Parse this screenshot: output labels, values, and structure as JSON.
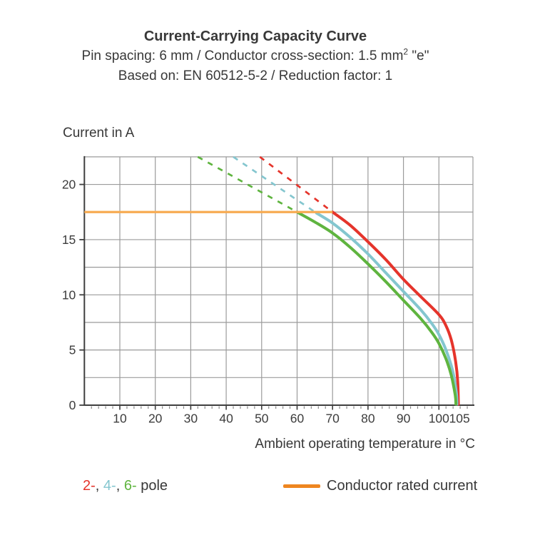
{
  "header": {
    "title": "Current-Carrying Capacity Curve",
    "subtitle_prefix": "Pin spacing: 6 mm / Conductor cross-section: 1.5 mm",
    "subtitle_sup": "2",
    "subtitle_suffix": " \"e\"",
    "basis": "Based on: EN 60512-5-2 / Reduction factor: 1"
  },
  "chart_data": {
    "type": "line",
    "title": "Current-Carrying Capacity Curve",
    "xlabel": "Ambient operating temperature in °C",
    "ylabel": "Current in A",
    "xlim": [
      0,
      109.6
    ],
    "ylim": [
      0,
      22.5
    ],
    "x_grid_step": 10,
    "y_grid_step": 2.5,
    "x_minor_tick_step": 2,
    "grid": true,
    "x_major_ticks": [
      10,
      20,
      30,
      40,
      50,
      60,
      70,
      80,
      90,
      100,
      105
    ],
    "y_major_ticks": [
      0,
      5,
      10,
      15,
      20
    ],
    "rated_current_A": 17.5,
    "colors": {
      "grid": "#9B9B9B",
      "axis": "#3F3F3F",
      "tick_text": "#3C3C3C",
      "red_2pole": "#E5342B",
      "cyan_4pole": "#84C6CF",
      "green_6pole": "#5FB43F",
      "orange_rated": "#F7AB52"
    },
    "series": [
      {
        "name": "2-pole",
        "role": "pole-curve",
        "color": "#E5342B",
        "dashed_extension": [
          [
            49.5,
            22.5
          ],
          [
            70,
            17.5
          ]
        ],
        "points": [
          [
            70,
            17.5
          ],
          [
            75,
            16.3
          ],
          [
            80,
            14.8
          ],
          [
            85,
            13.2
          ],
          [
            90,
            11.4
          ],
          [
            95,
            9.8
          ],
          [
            100,
            8.2
          ],
          [
            102,
            7.2
          ],
          [
            103.5,
            5.9
          ],
          [
            104.7,
            4.0
          ],
          [
            105.3,
            2.2
          ],
          [
            105.5,
            0.1
          ]
        ]
      },
      {
        "name": "4-pole",
        "role": "pole-curve",
        "color": "#84C6CF",
        "dashed_extension": [
          [
            42,
            22.5
          ],
          [
            65.5,
            17.4
          ]
        ],
        "points": [
          [
            65.5,
            17.4
          ],
          [
            70,
            16.5
          ],
          [
            75,
            15.2
          ],
          [
            80,
            13.7
          ],
          [
            85,
            12.0
          ],
          [
            90,
            10.3
          ],
          [
            95,
            8.6
          ],
          [
            98,
            7.4
          ],
          [
            100,
            6.4
          ],
          [
            102,
            5.0
          ],
          [
            103.8,
            3.2
          ],
          [
            104.9,
            1.2
          ],
          [
            105.1,
            0.1
          ]
        ]
      },
      {
        "name": "6-pole",
        "role": "pole-curve",
        "color": "#5FB43F",
        "dashed_extension": [
          [
            32,
            22.5
          ],
          [
            60,
            17.5
          ]
        ],
        "points": [
          [
            60,
            17.5
          ],
          [
            65,
            16.6
          ],
          [
            70,
            15.6
          ],
          [
            75,
            14.3
          ],
          [
            80,
            12.8
          ],
          [
            85,
            11.2
          ],
          [
            90,
            9.5
          ],
          [
            95,
            7.8
          ],
          [
            98,
            6.6
          ],
          [
            100,
            5.6
          ],
          [
            102,
            4.2
          ],
          [
            103.5,
            2.7
          ],
          [
            104.6,
            0.9
          ],
          [
            104.8,
            0.1
          ]
        ]
      },
      {
        "name": "Conductor rated current",
        "role": "rated-line",
        "color": "#F7AB52",
        "points": [
          [
            0,
            17.5
          ],
          [
            70,
            17.5
          ]
        ]
      }
    ]
  },
  "legend": {
    "pole_items": [
      {
        "label": "2-",
        "color": "#E5342B"
      },
      {
        "label": "4-",
        "color": "#84C6CF"
      },
      {
        "label": "6-",
        "color": "#5FB43F"
      }
    ],
    "separator": ", ",
    "suffix": " pole",
    "rated": {
      "label": "Conductor rated current",
      "swatch_color": "#EE8620"
    }
  }
}
